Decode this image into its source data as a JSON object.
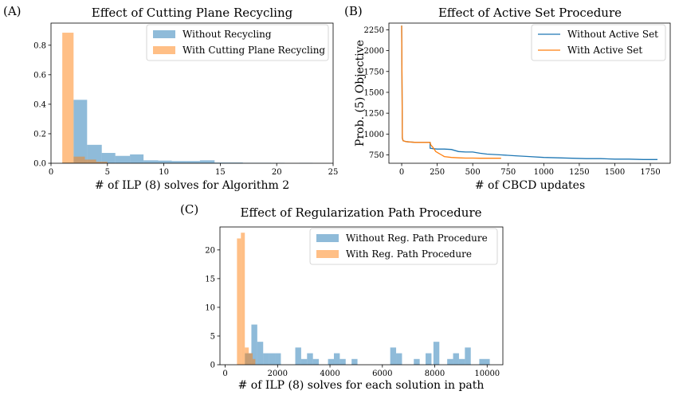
{
  "colors": {
    "blue": "#1f77b4",
    "orange": "#ff7f0e",
    "blue_fill": "rgba(31,119,180,0.5)",
    "orange_fill": "rgba(255,127,14,0.5)"
  },
  "chart_data": [
    {
      "id": "A",
      "panel_label": "(A)",
      "type": "bar",
      "title": "Effect of Cutting Plane Recycling",
      "xlabel": "# of ILP (8) solves for Algorithm 2",
      "ylabel": "",
      "xlim": [
        0,
        25
      ],
      "ylim": [
        0,
        0.95
      ],
      "xticks": [
        0,
        5,
        10,
        15,
        20,
        25
      ],
      "yticks": [
        0.0,
        0.2,
        0.4,
        0.6,
        0.8
      ],
      "xtick_labels": [
        "0",
        "5",
        "10",
        "15",
        "20",
        "25"
      ],
      "ytick_labels": [
        "0.0",
        "0.2",
        "0.4",
        "0.6",
        "0.8"
      ],
      "legend_position": "top-right",
      "grid": false,
      "series": [
        {
          "name": "Without Recycling",
          "color": "blue",
          "bins": [
            {
              "x0": 1.0,
              "x1": 2.0,
              "y": 0.005
            },
            {
              "x0": 2.0,
              "x1": 3.2,
              "y": 0.43
            },
            {
              "x0": 3.2,
              "x1": 4.5,
              "y": 0.125
            },
            {
              "x0": 4.5,
              "x1": 5.7,
              "y": 0.07
            },
            {
              "x0": 5.7,
              "x1": 7.0,
              "y": 0.05
            },
            {
              "x0": 7.0,
              "x1": 8.2,
              "y": 0.06
            },
            {
              "x0": 8.2,
              "x1": 9.5,
              "y": 0.02
            },
            {
              "x0": 9.5,
              "x1": 10.7,
              "y": 0.018
            },
            {
              "x0": 10.7,
              "x1": 12.0,
              "y": 0.015
            },
            {
              "x0": 12.0,
              "x1": 13.2,
              "y": 0.015
            },
            {
              "x0": 13.2,
              "x1": 14.5,
              "y": 0.02
            },
            {
              "x0": 14.5,
              "x1": 15.7,
              "y": 0.005
            },
            {
              "x0": 15.7,
              "x1": 17.0,
              "y": 0.005
            },
            {
              "x0": 17.0,
              "x1": 18.2,
              "y": 0.003
            },
            {
              "x0": 18.2,
              "x1": 19.5,
              "y": 0.003
            },
            {
              "x0": 19.5,
              "x1": 20.7,
              "y": 0.002
            },
            {
              "x0": 22.0,
              "x1": 23.2,
              "y": 0.002
            }
          ]
        },
        {
          "name": "With Cutting Plane Recycling",
          "color": "orange",
          "bins": [
            {
              "x0": 1.0,
              "x1": 2.0,
              "y": 0.885
            },
            {
              "x0": 2.0,
              "x1": 3.0,
              "y": 0.045
            },
            {
              "x0": 3.0,
              "x1": 4.0,
              "y": 0.025
            },
            {
              "x0": 4.0,
              "x1": 5.0,
              "y": 0.01
            }
          ]
        }
      ]
    },
    {
      "id": "B",
      "panel_label": "(B)",
      "type": "line",
      "title": "Effect of Active Set Procedure",
      "xlabel": "# of CBCD updates",
      "ylabel": "Prob. (5) Objective",
      "xlim": [
        -90,
        1890
      ],
      "ylim": [
        650,
        2330
      ],
      "xticks": [
        0,
        250,
        500,
        750,
        1000,
        1250,
        1500,
        1750
      ],
      "yticks": [
        750,
        1000,
        1250,
        1500,
        1750,
        2000,
        2250
      ],
      "xtick_labels": [
        "0",
        "250",
        "500",
        "750",
        "1000",
        "1250",
        "1500",
        "1750"
      ],
      "ytick_labels": [
        "750",
        "1000",
        "1250",
        "1500",
        "1750",
        "2000",
        "2250"
      ],
      "legend_position": "top-right",
      "grid": false,
      "series": [
        {
          "name": "Without Active Set",
          "color": "blue",
          "x": [
            0,
            5,
            10,
            30,
            60,
            100,
            150,
            200,
            200,
            220,
            250,
            300,
            350,
            400,
            450,
            500,
            550,
            600,
            700,
            800,
            900,
            1000,
            1100,
            1200,
            1300,
            1400,
            1500,
            1600,
            1700,
            1800
          ],
          "y": [
            2300,
            950,
            920,
            910,
            905,
            900,
            900,
            900,
            830,
            825,
            820,
            820,
            815,
            790,
            785,
            785,
            770,
            760,
            750,
            740,
            730,
            720,
            715,
            710,
            705,
            705,
            700,
            700,
            695,
            695
          ]
        },
        {
          "name": "With Active Set",
          "color": "orange",
          "x": [
            0,
            5,
            10,
            30,
            60,
            100,
            150,
            200,
            205,
            220,
            240,
            260,
            280,
            300,
            350,
            400,
            450,
            500,
            550,
            600,
            650,
            700
          ],
          "y": [
            2300,
            950,
            920,
            910,
            905,
            900,
            900,
            900,
            870,
            840,
            790,
            770,
            750,
            730,
            720,
            715,
            712,
            712,
            710,
            710,
            710,
            710
          ]
        }
      ]
    },
    {
      "id": "C",
      "panel_label": "(C)",
      "type": "bar",
      "title": "Effect of Regularization Path Procedure",
      "xlabel": "# of ILP (8) solves for each solution in path",
      "ylabel": "",
      "xlim": [
        -200,
        10600
      ],
      "ylim": [
        0,
        24
      ],
      "xticks": [
        0,
        2000,
        4000,
        6000,
        8000,
        10000
      ],
      "yticks": [
        0,
        5,
        10,
        15,
        20
      ],
      "xtick_labels": [
        "0",
        "2000",
        "4000",
        "6000",
        "8000",
        "10000"
      ],
      "ytick_labels": [
        "0",
        "5",
        "10",
        "15",
        "20"
      ],
      "legend_position": "top-right",
      "grid": false,
      "series": [
        {
          "name": "Without Reg. Path Procedure",
          "color": "blue",
          "bins": [
            {
              "x0": 750,
              "x1": 1000,
              "y": 2
            },
            {
              "x0": 1000,
              "x1": 1225,
              "y": 7
            },
            {
              "x0": 1225,
              "x1": 1450,
              "y": 4
            },
            {
              "x0": 1450,
              "x1": 1675,
              "y": 2
            },
            {
              "x0": 1675,
              "x1": 1900,
              "y": 2
            },
            {
              "x0": 1900,
              "x1": 2125,
              "y": 2
            },
            {
              "x0": 2675,
              "x1": 2900,
              "y": 3
            },
            {
              "x0": 2900,
              "x1": 3125,
              "y": 1
            },
            {
              "x0": 3125,
              "x1": 3350,
              "y": 2
            },
            {
              "x0": 3350,
              "x1": 3575,
              "y": 1
            },
            {
              "x0": 3925,
              "x1": 4150,
              "y": 1
            },
            {
              "x0": 4150,
              "x1": 4375,
              "y": 2
            },
            {
              "x0": 4375,
              "x1": 4600,
              "y": 1
            },
            {
              "x0": 4825,
              "x1": 5050,
              "y": 1
            },
            {
              "x0": 6300,
              "x1": 6525,
              "y": 3
            },
            {
              "x0": 6525,
              "x1": 6750,
              "y": 2
            },
            {
              "x0": 7200,
              "x1": 7425,
              "y": 1
            },
            {
              "x0": 7650,
              "x1": 7875,
              "y": 2
            },
            {
              "x0": 7950,
              "x1": 8175,
              "y": 4
            },
            {
              "x0": 8475,
              "x1": 8700,
              "y": 1
            },
            {
              "x0": 8700,
              "x1": 8925,
              "y": 2
            },
            {
              "x0": 8925,
              "x1": 9150,
              "y": 1
            },
            {
              "x0": 9150,
              "x1": 9375,
              "y": 3
            },
            {
              "x0": 9700,
              "x1": 10100,
              "y": 1
            }
          ]
        },
        {
          "name": "With Reg. Path Procedure",
          "color": "orange",
          "bins": [
            {
              "x0": 450,
              "x1": 600,
              "y": 22
            },
            {
              "x0": 600,
              "x1": 750,
              "y": 23
            },
            {
              "x0": 750,
              "x1": 900,
              "y": 3
            },
            {
              "x0": 900,
              "x1": 1050,
              "y": 2
            },
            {
              "x0": 1050,
              "x1": 1150,
              "y": 1
            }
          ]
        }
      ]
    }
  ]
}
